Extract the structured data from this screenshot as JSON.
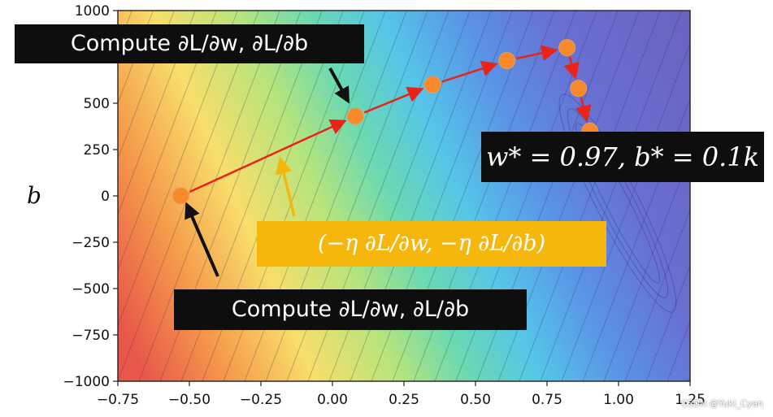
{
  "chart_data": {
    "type": "scatter",
    "background": "contour",
    "title": "",
    "xlabel": "",
    "ylabel": "b",
    "xlim": [
      -0.75,
      1.25
    ],
    "ylim": [
      -1000,
      1000
    ],
    "xticks": [
      "−0.75",
      "−0.50",
      "−0.25",
      "0.00",
      "0.25",
      "0.50",
      "0.75",
      "1.00",
      "1.25"
    ],
    "yticks": [
      "1000",
      "750",
      "500",
      "250",
      "0",
      "−250",
      "−500",
      "−750",
      "−1000"
    ],
    "xtick_values": [
      -0.75,
      -0.5,
      -0.25,
      0,
      0.25,
      0.5,
      0.75,
      1.0,
      1.25
    ],
    "ytick_values": [
      1000,
      750,
      500,
      250,
      0,
      -250,
      -500,
      -750,
      -1000
    ],
    "series": [
      {
        "points": [
          {
            "x": -0.53,
            "y": 0
          },
          {
            "x": 0.08,
            "y": 430
          },
          {
            "x": 0.35,
            "y": 600
          },
          {
            "x": 0.61,
            "y": 730
          },
          {
            "x": 0.82,
            "y": 800
          },
          {
            "x": 0.86,
            "y": 580
          },
          {
            "x": 0.9,
            "y": 350
          }
        ]
      }
    ],
    "annotations": {
      "compute_top": "Compute ∂L/∂w, ∂L/∂b",
      "compute_bottom": "Compute ∂L/∂w, ∂L/∂b",
      "update": "(−η ∂L/∂w, −η ∂L/∂b)",
      "optimum": "w* = 0.97, b* = 0.1k"
    },
    "colors": {
      "point": "#f7892b",
      "path_arrow": "#e8241a",
      "pointer_arrow": "#111111",
      "update_arrow": "#f5b70c",
      "update_box": "#f5b70c",
      "label_box": "#0e0e0e"
    }
  },
  "watermark": "CSDN @Yuki_Cyan"
}
